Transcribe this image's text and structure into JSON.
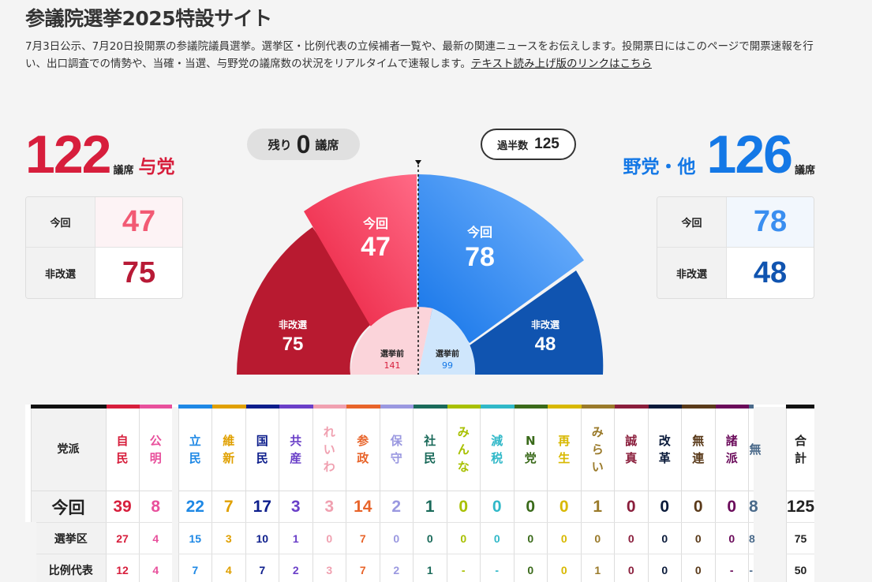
{
  "page": {
    "title": "参議院選挙2025特設サイト",
    "intro": "7月3日公示、7月20日投開票の参議院議員選挙。選挙区・比例代表の立候補者一覧や、最新の関連ニュースをお伝えします。投開票日にはこのページで開票速報を行い、出口調査での情勢や、当確・当選、与野党の議席数の状況をリアルタイムで速報します。",
    "text_link": "テキスト読み上げ版のリンクはこちら"
  },
  "ruling": {
    "total": "122",
    "unit": "議席",
    "side_label": "与党",
    "this_label": "今回",
    "this_value": "47",
    "non_label": "非改選",
    "non_value": "75"
  },
  "opposition": {
    "total": "126",
    "unit": "議席",
    "side_label": "野党・他",
    "this_label": "今回",
    "this_value": "78",
    "non_label": "非改選",
    "non_value": "48"
  },
  "remaining": {
    "prefix": "残り",
    "value": "0",
    "suffix": "議席"
  },
  "majority": {
    "label": "過半数",
    "value": "125"
  },
  "arc": {
    "ruling_this_label": "今回",
    "ruling_this_value": "47",
    "ruling_non_label": "非改選",
    "ruling_non_value": "75",
    "opp_this_label": "今回",
    "opp_this_value": "78",
    "opp_non_label": "非改選",
    "opp_non_value": "48",
    "before_label": "選挙前",
    "ruling_before": "141",
    "opp_before": "99"
  },
  "table": {
    "header_label": "党派",
    "row_labels": [
      "今回",
      "選挙区",
      "比例代表"
    ],
    "total_header": "合計",
    "parties": [
      {
        "name": "自民",
        "color": "#d71e3c",
        "total": "39",
        "district": "27",
        "pr": "12"
      },
      {
        "name": "公明",
        "color": "#e8509c",
        "total": "8",
        "district": "4",
        "pr": "4"
      },
      {
        "name": "立民",
        "color": "#1e88e5",
        "total": "22",
        "district": "15",
        "pr": "7"
      },
      {
        "name": "維新",
        "color": "#e0a000",
        "total": "7",
        "district": "3",
        "pr": "4"
      },
      {
        "name": "国民",
        "color": "#0d1e8c",
        "total": "17",
        "district": "10",
        "pr": "7"
      },
      {
        "name": "共産",
        "color": "#6a3fc8",
        "total": "3",
        "district": "1",
        "pr": "2"
      },
      {
        "name": "れいわ",
        "color": "#f0a0b0",
        "total": "3",
        "district": "0",
        "pr": "3"
      },
      {
        "name": "参政",
        "color": "#e8642a",
        "total": "14",
        "district": "7",
        "pr": "7"
      },
      {
        "name": "保守",
        "color": "#9a98e0",
        "total": "2",
        "district": "0",
        "pr": "2"
      },
      {
        "name": "社民",
        "color": "#1a6a5a",
        "total": "1",
        "district": "0",
        "pr": "1"
      },
      {
        "name": "みんな",
        "color": "#a8c000",
        "total": "0",
        "district": "0",
        "pr": "-"
      },
      {
        "name": "減税",
        "color": "#30b8c8",
        "total": "0",
        "district": "0",
        "pr": "-"
      },
      {
        "name": "N党",
        "color": "#3a6a1a",
        "total": "0",
        "district": "0",
        "pr": "0"
      },
      {
        "name": "再生",
        "color": "#d8b800",
        "total": "0",
        "district": "0",
        "pr": "0"
      },
      {
        "name": "みらい",
        "color": "#9a7a2a",
        "total": "1",
        "district": "0",
        "pr": "1"
      },
      {
        "name": "誠真",
        "color": "#8a1e3c",
        "total": "0",
        "district": "0",
        "pr": "0"
      },
      {
        "name": "改革",
        "color": "#0a1a3a",
        "total": "0",
        "district": "0",
        "pr": "0"
      },
      {
        "name": "無連",
        "color": "#5a3a1a",
        "total": "0",
        "district": "0",
        "pr": "0"
      },
      {
        "name": "諸派",
        "color": "#6a0a5a",
        "total": "0",
        "district": "0",
        "pr": "-"
      },
      {
        "name": "無",
        "color": "#4a6a8a",
        "total": "8",
        "district": "8",
        "pr": "-"
      }
    ],
    "grand_total": {
      "total": "125",
      "district": "75",
      "pr": "50"
    }
  },
  "colors": {
    "ruling": "#d71e3c",
    "ruling_light": "#f25a74",
    "ruling_dark": "#b81a36",
    "opposition": "#1478e6",
    "opposition_light": "#3a8ef0",
    "opposition_dark": "#1054b0"
  }
}
